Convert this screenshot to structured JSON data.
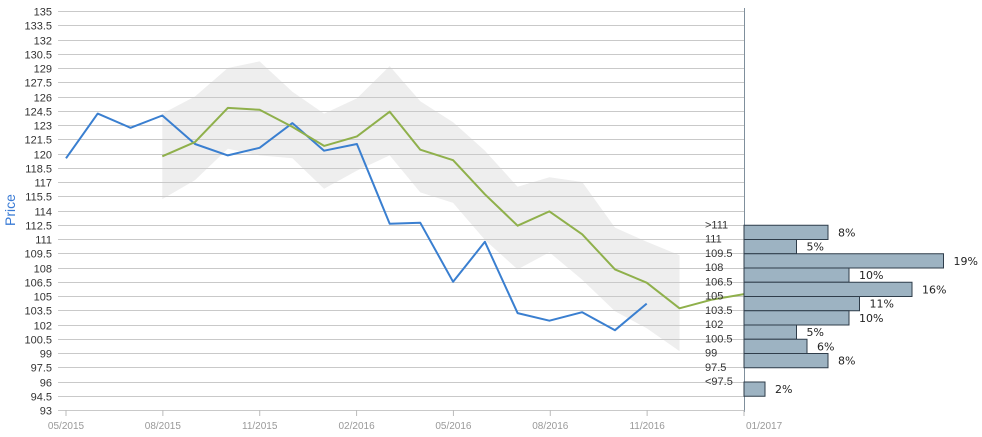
{
  "chart_data": {
    "type": "line",
    "ylabel": "Price",
    "ylim": [
      93,
      135
    ],
    "ystep": 1.5,
    "x_ticks": [
      "05/2015",
      "08/2015",
      "11/2015",
      "02/2016",
      "05/2016",
      "08/2016",
      "11/2016",
      "01/2017"
    ],
    "x_range": [
      "2015-04-01",
      "2017-01-01"
    ],
    "grid": true,
    "series": [
      {
        "name": "",
        "color": "#3a7fd0",
        "points": [
          {
            "x": "2015-04-01",
            "y": 119.5
          },
          {
            "x": "2015-05-01",
            "y": 124.2
          },
          {
            "x": "2015-06-01",
            "y": 122.7
          },
          {
            "x": "2015-07-01",
            "y": 124.0
          },
          {
            "x": "2015-08-01",
            "y": 121.0
          },
          {
            "x": "2015-09-01",
            "y": 119.8
          },
          {
            "x": "2015-10-01",
            "y": 120.6
          },
          {
            "x": "2015-11-01",
            "y": 123.2
          },
          {
            "x": "2015-12-01",
            "y": 120.3
          },
          {
            "x": "2016-01-01",
            "y": 121.0
          },
          {
            "x": "2016-02-01",
            "y": 112.6
          },
          {
            "x": "2016-03-01",
            "y": 112.7
          },
          {
            "x": "2016-04-01",
            "y": 106.5
          },
          {
            "x": "2016-05-01",
            "y": 110.7
          },
          {
            "x": "2016-06-01",
            "y": 103.2
          },
          {
            "x": "2016-07-01",
            "y": 102.4
          },
          {
            "x": "2016-08-01",
            "y": 103.3
          },
          {
            "x": "2016-09-01",
            "y": 101.4
          },
          {
            "x": "2016-10-01",
            "y": 104.2
          }
        ]
      },
      {
        "name": "",
        "color": "#8fb04b",
        "points": [
          {
            "x": "2015-07-01",
            "y": 119.7
          },
          {
            "x": "2015-08-01",
            "y": 121.2
          },
          {
            "x": "2015-09-01",
            "y": 124.8
          },
          {
            "x": "2015-10-01",
            "y": 124.6
          },
          {
            "x": "2015-11-01",
            "y": 122.8
          },
          {
            "x": "2015-12-01",
            "y": 120.8
          },
          {
            "x": "2016-01-01",
            "y": 121.8
          },
          {
            "x": "2016-02-01",
            "y": 124.4
          },
          {
            "x": "2016-03-01",
            "y": 120.4
          },
          {
            "x": "2016-04-01",
            "y": 119.3
          },
          {
            "x": "2016-05-01",
            "y": 115.7
          },
          {
            "x": "2016-06-01",
            "y": 112.4
          },
          {
            "x": "2016-07-01",
            "y": 113.9
          },
          {
            "x": "2016-08-01",
            "y": 111.5
          },
          {
            "x": "2016-09-01",
            "y": 107.8
          },
          {
            "x": "2016-10-01",
            "y": 106.4
          },
          {
            "x": "2016-11-01",
            "y": 103.7
          },
          {
            "x": "2016-12-01",
            "y": 104.6
          },
          {
            "x": "2017-01-01",
            "y": 105.2
          }
        ]
      }
    ],
    "band": {
      "color": "#eeeeee",
      "points": [
        {
          "x": "2015-07-01",
          "upper": 124.2,
          "lower": 115.2
        },
        {
          "x": "2015-08-01",
          "upper": 126.0,
          "lower": 117.2
        },
        {
          "x": "2015-09-01",
          "upper": 129.0,
          "lower": 120.5
        },
        {
          "x": "2015-10-01",
          "upper": 129.7,
          "lower": 119.8
        },
        {
          "x": "2015-11-01",
          "upper": 126.5,
          "lower": 119.5
        },
        {
          "x": "2015-12-01",
          "upper": 124.2,
          "lower": 116.3
        },
        {
          "x": "2016-01-01",
          "upper": 125.8,
          "lower": 118.2
        },
        {
          "x": "2016-02-01",
          "upper": 129.2,
          "lower": 119.8
        },
        {
          "x": "2016-03-01",
          "upper": 125.5,
          "lower": 115.9
        },
        {
          "x": "2016-04-01",
          "upper": 123.3,
          "lower": 114.8
        },
        {
          "x": "2016-05-01",
          "upper": 120.3,
          "lower": 110.9
        },
        {
          "x": "2016-06-01",
          "upper": 116.5,
          "lower": 107.8
        },
        {
          "x": "2016-07-01",
          "upper": 117.5,
          "lower": 109.6
        },
        {
          "x": "2016-08-01",
          "upper": 117.0,
          "lower": 106.7
        },
        {
          "x": "2016-09-01",
          "upper": 112.2,
          "lower": 103.4
        },
        {
          "x": "2016-10-01",
          "upper": 110.7,
          "lower": 101.6
        },
        {
          "x": "2016-11-01",
          "upper": 109.3,
          "lower": 99.2
        }
      ]
    },
    "distribution": {
      "color": "#9db3c2",
      "border": "#2f3d4a",
      "bins": [
        {
          "label": ">111",
          "percent": 8,
          "percent_label": "8%"
        },
        {
          "label": "111",
          "percent": 5,
          "percent_label": "5%"
        },
        {
          "label": "109.5",
          "percent": 19,
          "percent_label": "19%"
        },
        {
          "label": "108",
          "percent": 10,
          "percent_label": "10%"
        },
        {
          "label": "106.5",
          "percent": 16,
          "percent_label": "16%"
        },
        {
          "label": "105",
          "percent": 11,
          "percent_label": "11%"
        },
        {
          "label": "103.5",
          "percent": 10,
          "percent_label": "10%"
        },
        {
          "label": "102",
          "percent": 5,
          "percent_label": "5%"
        },
        {
          "label": "100.5",
          "percent": 6,
          "percent_label": "6%"
        },
        {
          "label": "99",
          "percent": 8,
          "percent_label": "8%"
        },
        {
          "label": "97.5",
          "percent": 0,
          "percent_label": ""
        },
        {
          "label": "<97.5",
          "percent": 2,
          "percent_label": "2%"
        }
      ]
    }
  }
}
